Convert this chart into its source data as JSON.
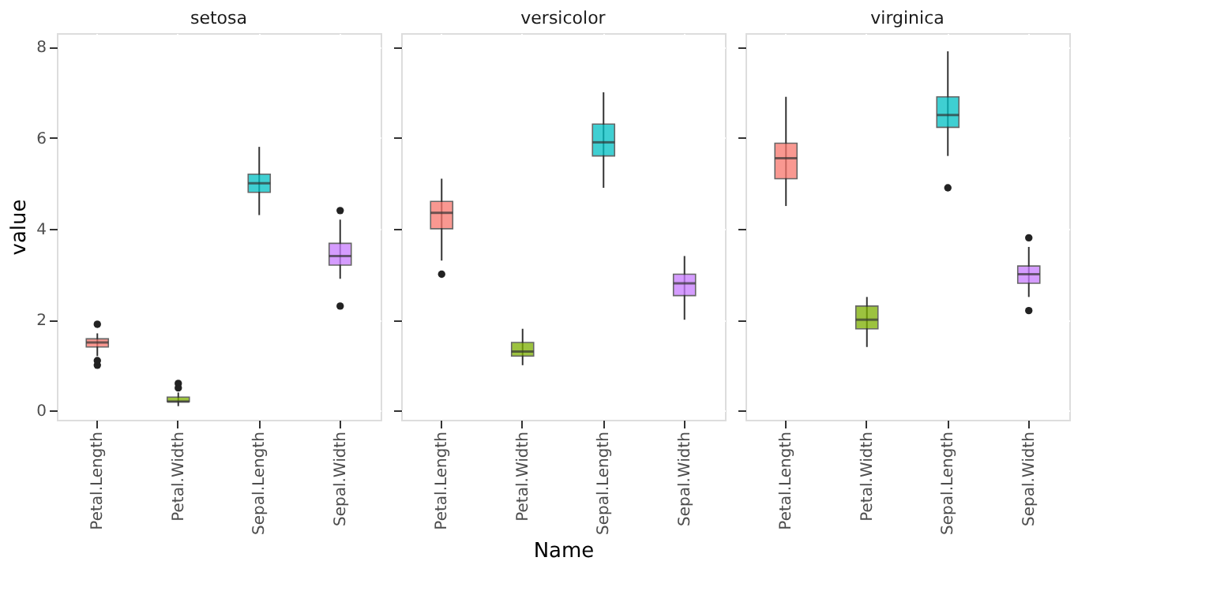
{
  "chart_data": [
    {
      "type": "box",
      "title": "setosa",
      "ylabel": "value",
      "categories": [
        "Petal.Length",
        "Petal.Width",
        "Sepal.Length",
        "Sepal.Width"
      ],
      "colors": [
        "#f8766d",
        "#7cae00",
        "#00bfc4",
        "#c77cff"
      ],
      "ylim": [
        -0.2,
        8.3
      ],
      "yticks": [
        0,
        2,
        4,
        6,
        8
      ],
      "grid": true,
      "boxes": [
        {
          "low": 1.2,
          "q1": 1.4,
          "median": 1.5,
          "q3": 1.58,
          "high": 1.7,
          "outliers": [
            1.0,
            1.1,
            1.9
          ]
        },
        {
          "low": 0.1,
          "q1": 0.2,
          "median": 0.2,
          "q3": 0.3,
          "high": 0.4,
          "outliers": [
            0.5,
            0.6
          ]
        },
        {
          "low": 4.3,
          "q1": 4.8,
          "median": 5.0,
          "q3": 5.2,
          "high": 5.8
        },
        {
          "low": 2.9,
          "q1": 3.2,
          "median": 3.4,
          "q3": 3.68,
          "high": 4.2,
          "outliers": [
            2.3,
            4.4
          ]
        }
      ]
    },
    {
      "type": "box",
      "title": "versicolor",
      "xlabel": "Name",
      "categories": [
        "Petal.Length",
        "Petal.Width",
        "Sepal.Length",
        "Sepal.Width"
      ],
      "colors": [
        "#f8766d",
        "#7cae00",
        "#00bfc4",
        "#c77cff"
      ],
      "ylim": [
        -0.2,
        8.3
      ],
      "yticks": [
        0,
        2,
        4,
        6,
        8
      ],
      "grid": true,
      "tick_labels": "x",
      "boxes": [
        {
          "low": 3.3,
          "q1": 4.0,
          "median": 4.35,
          "q3": 4.6,
          "high": 5.1,
          "outliers": [
            3.0
          ]
        },
        {
          "low": 1.0,
          "q1": 1.2,
          "median": 1.3,
          "q3": 1.5,
          "high": 1.8
        },
        {
          "low": 4.9,
          "q1": 5.6,
          "median": 5.9,
          "q3": 6.3,
          "high": 7.0
        },
        {
          "low": 2.0,
          "q1": 2.53,
          "median": 2.8,
          "q3": 3.0,
          "high": 3.4
        }
      ]
    },
    {
      "type": "box",
      "title": "virginica",
      "categories": [
        "Petal.Length",
        "Petal.Width",
        "Sepal.Length",
        "Sepal.Width"
      ],
      "colors": [
        "#f8766d",
        "#7cae00",
        "#00bfc4",
        "#c77cff"
      ],
      "ylim": [
        -0.2,
        8.3
      ],
      "yticks": [
        0,
        2,
        4,
        6,
        8
      ],
      "grid": true,
      "tick_labels": "x",
      "boxes": [
        {
          "low": 4.5,
          "q1": 5.1,
          "median": 5.55,
          "q3": 5.88,
          "high": 6.9
        },
        {
          "low": 1.4,
          "q1": 1.8,
          "median": 2.0,
          "q3": 2.3,
          "high": 2.5
        },
        {
          "low": 5.6,
          "q1": 6.23,
          "median": 6.5,
          "q3": 6.9,
          "high": 7.9,
          "outliers": [
            4.9
          ]
        },
        {
          "low": 2.5,
          "q1": 2.8,
          "median": 3.0,
          "q3": 3.18,
          "high": 3.6,
          "outliers": [
            2.2,
            3.8
          ]
        }
      ]
    }
  ]
}
